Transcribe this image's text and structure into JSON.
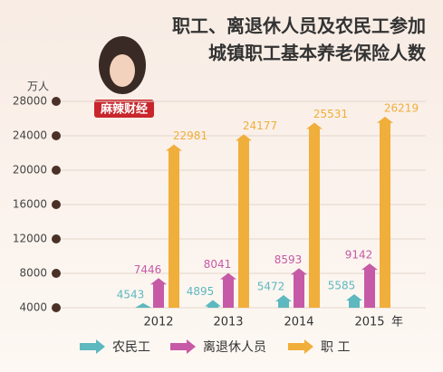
{
  "chart_data": {
    "type": "bar",
    "title": [
      "职工、离退休人员及农民工参加",
      "城镇职工基本养老保险人数"
    ],
    "logo": "麻辣财经",
    "y_label": "万人",
    "x_label": "年",
    "categories": [
      "2012",
      "2013",
      "2014",
      "2015"
    ],
    "series": [
      {
        "name": "农民工",
        "color": "#5db8bf",
        "values": [
          4543,
          4895,
          5472,
          5585
        ]
      },
      {
        "name": "离退休人员",
        "color": "#c65aa6",
        "values": [
          7446,
          8041,
          8593,
          9142
        ]
      },
      {
        "name": "职 工",
        "color": "#f0ae3a",
        "values": [
          22981,
          24177,
          25531,
          26219
        ]
      }
    ],
    "ylim": [
      4000,
      28000
    ],
    "yticks": [
      4000,
      8000,
      12000,
      16000,
      20000,
      24000,
      28000
    ],
    "grid": true
  }
}
